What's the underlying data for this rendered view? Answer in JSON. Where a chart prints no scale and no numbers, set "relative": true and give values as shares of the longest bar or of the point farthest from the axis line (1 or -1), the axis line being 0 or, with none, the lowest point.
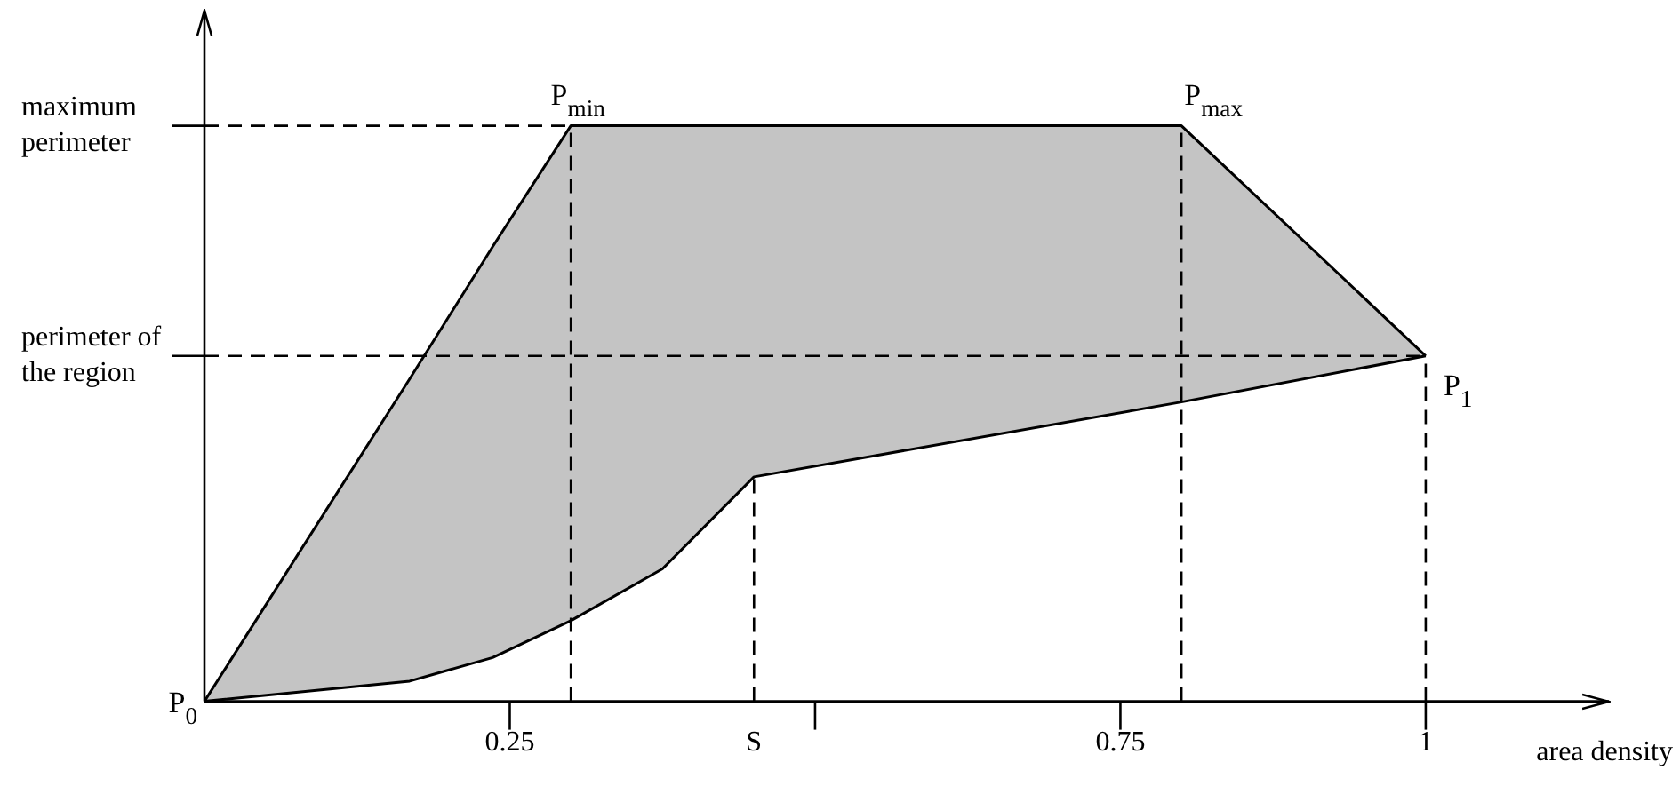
{
  "chart_data": {
    "type": "area",
    "relative": true,
    "xlabel": "area density",
    "xlim": [
      0,
      1.15
    ],
    "xticks": [
      0.25,
      {
        "value": 0.45,
        "label": "S"
      },
      {
        "value": 0.5,
        "label": null
      },
      0.75,
      1
    ],
    "series": [
      {
        "type": "line",
        "color": "#000000",
        "x": [
          0,
          0.168,
          0.236,
          0.3,
          0.375,
          0.45,
          0.8,
          1
        ],
        "values": [
          0,
          0.035,
          0.076,
          0.14,
          0.23,
          0.39,
          0.52,
          0.6
        ]
      },
      {
        "type": "area",
        "color": "#c4c4c4",
        "x": [
          0,
          0.168,
          0.236,
          0.3,
          0.375,
          0.45,
          0.8,
          1
        ],
        "values": [
          0,
          0.56,
          0.79,
          1,
          1,
          1,
          1,
          0.6
        ]
      }
    ],
    "ref_lines": [
      {
        "axis": "y",
        "value": 1,
        "label": "maximum perimeter",
        "line_style": "dashed"
      },
      {
        "axis": "y",
        "value": 0.6,
        "label": "perimeter of the region",
        "line_style": "dashed"
      },
      {
        "axis": "x",
        "value": 0.3,
        "line_style": "dashed"
      },
      {
        "axis": "x",
        "value": 0.45,
        "line_style": "dashed"
      },
      {
        "axis": "x",
        "value": 0.8,
        "line_style": "dashed"
      },
      {
        "axis": "x",
        "value": 1,
        "line_style": "dashed"
      }
    ],
    "annotations": [
      {
        "text": "P$_{0}$",
        "x": 0,
        "y": 0
      },
      {
        "text": "P$_{min}$",
        "x": 0.3,
        "y": 1
      },
      {
        "text": "P$_{max}$",
        "x": 0.8,
        "y": 1
      },
      {
        "text": "P$_{1}$",
        "x": 1,
        "y": 0.6
      }
    ],
    "grid": false,
    "legend": false,
    "marker": "none"
  }
}
